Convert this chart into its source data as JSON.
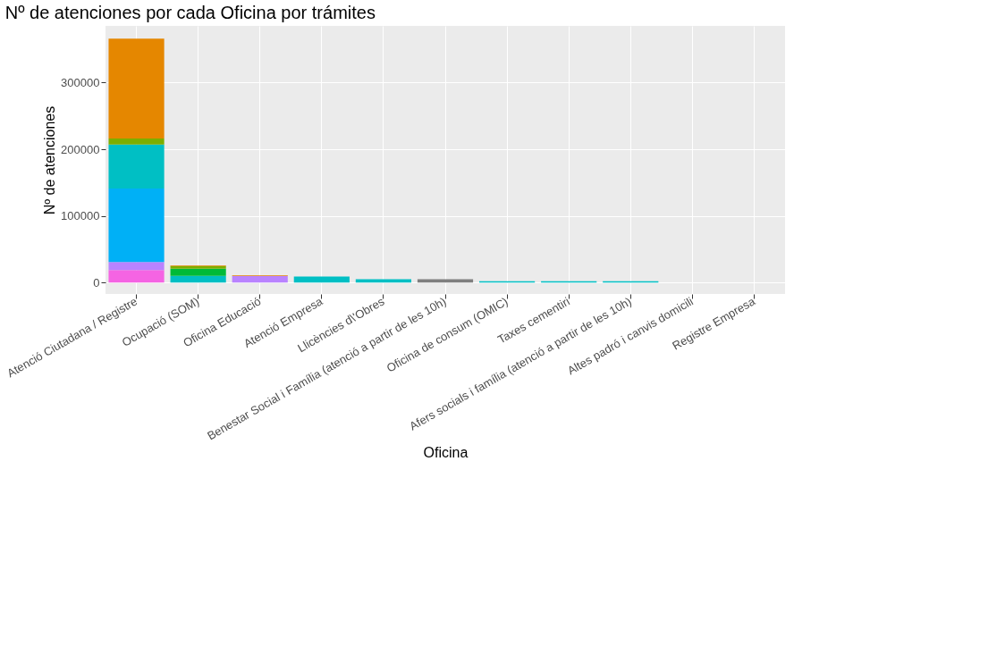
{
  "chart_data": {
    "type": "bar",
    "title": "Nº de atenciones por cada Oficina por trámites",
    "xlabel": "Oficina",
    "ylabel": "Nº de atenciones",
    "categories": [
      "Atenció Ciutadana / Registre",
      "Ocupació (SOM)",
      "Oficina Educació",
      "Atenció Empresa",
      "Llicències d\\'Obres",
      "Benestar Social i Família (atenció a partir de les 10h)",
      "Oficina de consum (OMIC)",
      "Taxes cementiri",
      "Afers socials i família (atenció a partir de les 10h)",
      "Altes padró i canvis domicili",
      "Registre Empresa"
    ],
    "stacked": true,
    "series": [
      {
        "color": "#f564e3",
        "values": [
          19000,
          0,
          0,
          0,
          0,
          0,
          0,
          0,
          0,
          0,
          0
        ]
      },
      {
        "color": "#b983ff",
        "values": [
          12000,
          0,
          10000,
          0,
          0,
          0,
          0,
          0,
          0,
          0,
          0
        ]
      },
      {
        "color": "#00b0f6",
        "values": [
          110000,
          0,
          0,
          0,
          0,
          0,
          0,
          0,
          0,
          0,
          0
        ]
      },
      {
        "color": "#00bfc4",
        "values": [
          66000,
          10000,
          0,
          9000,
          5000,
          0,
          2000,
          2000,
          2000,
          0,
          0
        ]
      },
      {
        "color": "#7f7f7f",
        "values": [
          0,
          0,
          0,
          0,
          0,
          5000,
          0,
          0,
          0,
          0,
          0
        ]
      },
      {
        "color": "#00ba38",
        "values": [
          0,
          11000,
          0,
          0,
          0,
          0,
          0,
          0,
          0,
          0,
          0
        ]
      },
      {
        "color": "#7cae00",
        "values": [
          9000,
          4000,
          0,
          0,
          0,
          0,
          0,
          0,
          0,
          0,
          0
        ]
      },
      {
        "color": "#e58700",
        "values": [
          150000,
          1000,
          1000,
          0,
          0,
          0,
          0,
          0,
          0,
          0,
          0
        ]
      }
    ],
    "ylim": [
      -17000,
      385000
    ],
    "yticks": [
      0,
      100000,
      200000,
      300000
    ],
    "grid": true,
    "legend": false
  }
}
